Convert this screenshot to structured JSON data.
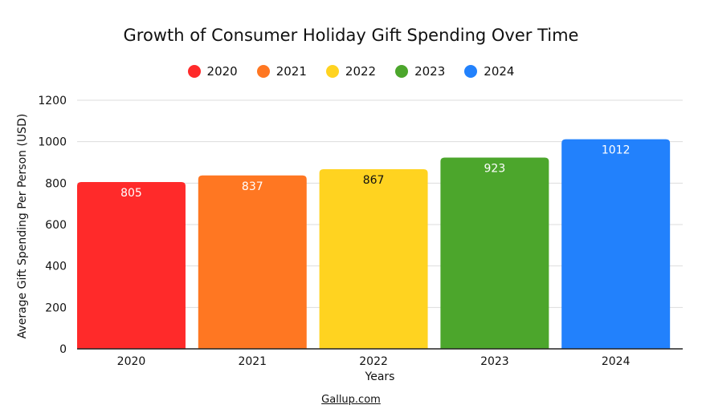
{
  "chart_data": {
    "type": "bar",
    "title": "Growth of Consumer Holiday Gift Spending Over Time",
    "categories": [
      "2020",
      "2021",
      "2022",
      "2023",
      "2024"
    ],
    "values": [
      805,
      837,
      867,
      923,
      1012
    ],
    "data_labels": [
      "805",
      "837",
      "867",
      "923",
      "1012"
    ],
    "colors": [
      "#ff2a2a",
      "#ff7722",
      "#ffd320",
      "#4ca62c",
      "#2281fc"
    ],
    "label_colors": [
      "#ffffff",
      "#ffffff",
      "#111111",
      "#ffffff",
      "#ffffff"
    ],
    "legend": [
      "2020",
      "2021",
      "2022",
      "2023",
      "2024"
    ],
    "legend_position": "top",
    "xlabel": "Years",
    "ylabel": "Average Gift Spending Per Person (USD)",
    "ylim": [
      0,
      1200
    ],
    "yticks": [
      "0",
      "200",
      "400",
      "600",
      "800",
      "1000",
      "1200"
    ],
    "grid": true
  },
  "source": "Gallup.com"
}
